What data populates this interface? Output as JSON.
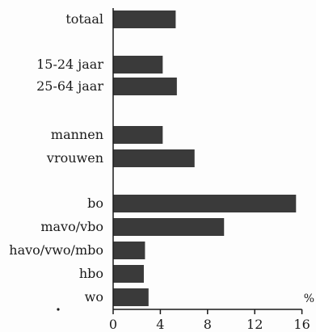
{
  "chart_data": {
    "type": "bar",
    "orientation": "horizontal",
    "title": "",
    "xlabel": "",
    "ylabel": "",
    "unit": "%",
    "xlim": [
      0,
      16
    ],
    "x_ticks": [
      "0",
      "4",
      "8",
      "12",
      "16"
    ],
    "grid": false,
    "legend": "none",
    "categories": [
      "totaal",
      "15-24 jaar",
      "25-64 jaar",
      "mannen",
      "vrouwen",
      "bo",
      "mavo/vbo",
      "havo/vwo/mbo",
      "hbo",
      "wo"
    ],
    "groups": [
      [
        "totaal"
      ],
      [
        "15-24 jaar",
        "25-64 jaar"
      ],
      [
        "mannen",
        "vrouwen"
      ],
      [
        "bo",
        "mavo/vbo",
        "havo/vwo/mbo",
        "hbo",
        "wo"
      ]
    ],
    "values": [
      5.3,
      4.2,
      5.4,
      4.2,
      6.9,
      15.5,
      9.4,
      2.7,
      2.6,
      3.0
    ],
    "colors": {
      "bar": "#3a3a3a",
      "axis": "#1a1a1a",
      "text": "#1a1a1a",
      "background": "#fdfdfd"
    }
  }
}
